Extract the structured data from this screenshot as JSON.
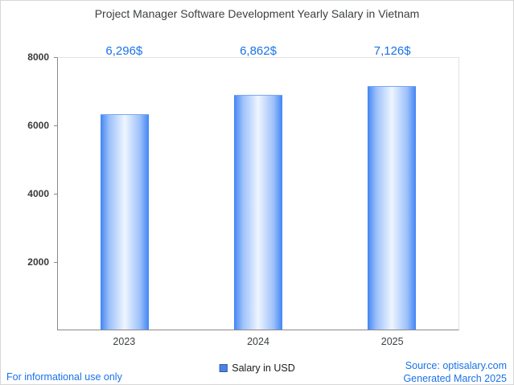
{
  "chart_data": {
    "type": "bar",
    "title": "Project Manager Software Development Yearly Salary in Vietnam",
    "categories": [
      "2023",
      "2024",
      "2025"
    ],
    "series": [
      {
        "name": "Salary in USD",
        "values": [
          6296,
          6862,
          7126
        ]
      }
    ],
    "value_labels": [
      "6,296$",
      "6,862$",
      "7,126$"
    ],
    "xlabel": "",
    "ylabel": "",
    "ylim": [
      0,
      8000
    ],
    "yticks": [
      "2000",
      "4000",
      "6000",
      "8000"
    ],
    "grid": false,
    "legend": {
      "label": "Salary in USD",
      "position": "bottom"
    },
    "colors": {
      "bar_edge": "#4285f4",
      "bar_center": "#eef5ff",
      "value_label_text": "#1a73e8",
      "link_text": "#1a73e8",
      "title_text": "#3c4043"
    }
  },
  "footer": {
    "left_note": "For informational use only",
    "source": "Source: optisalary.com",
    "generated": "Generated March 2025"
  }
}
